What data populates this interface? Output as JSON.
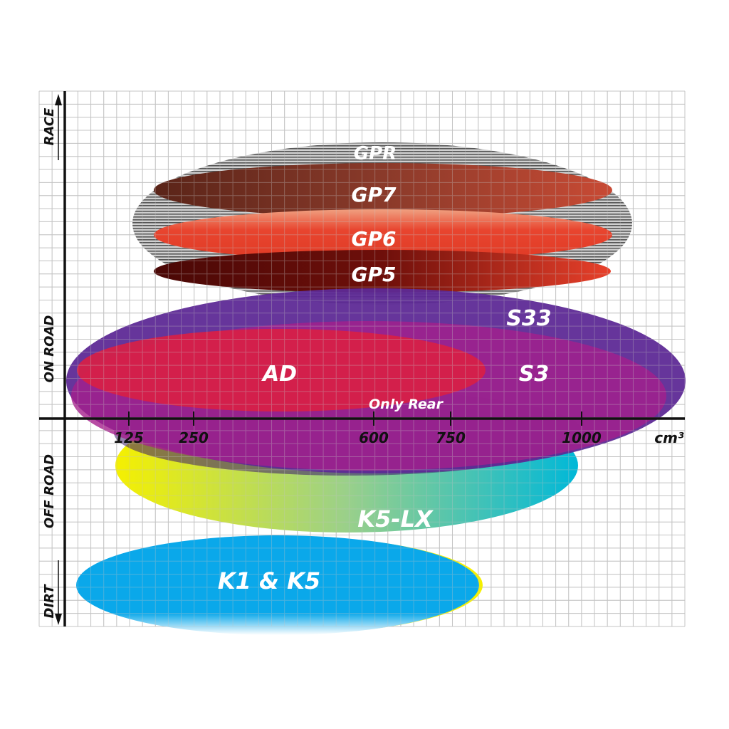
{
  "side_labels": {
    "race": "RACE",
    "on_road": "ON ROAD",
    "off_road": "OFF ROAD",
    "dirt": "DIRT"
  },
  "x_axis": {
    "ticks": [
      "125",
      "250",
      "600",
      "750",
      "1000"
    ],
    "unit": "cm³"
  },
  "tires": [
    {
      "name": "GPR",
      "color": "#9a9a9a"
    },
    {
      "name": "GP7",
      "color": "#8a3a2a"
    },
    {
      "name": "GP6",
      "color": "#e8452f"
    },
    {
      "name": "GP5",
      "color": "#6e0f0a"
    },
    {
      "name": "S33",
      "color": "#5e2a96"
    },
    {
      "name": "S3",
      "color": "#a51f8c"
    },
    {
      "name": "AD",
      "color": "#d81f45"
    },
    {
      "name": "K5-LX",
      "color": "#1fb8c8"
    },
    {
      "name": "K1 & K5",
      "color": "#0aa8ea"
    }
  ],
  "annotation": "Only Rear"
}
